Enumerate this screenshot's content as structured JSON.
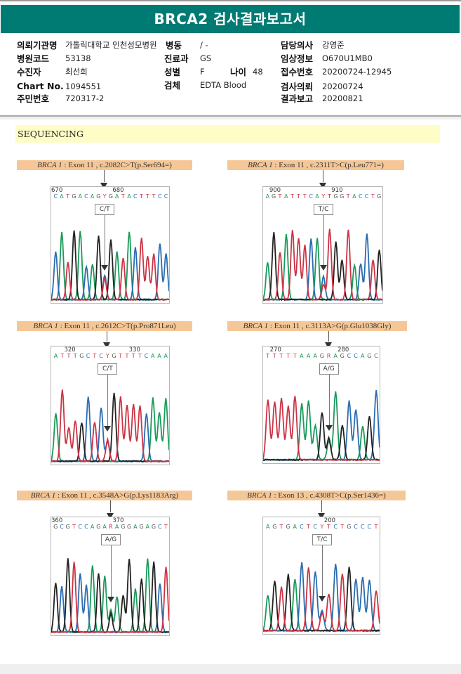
{
  "report": {
    "title": "BRCA2 검사결과보고서"
  },
  "patient_info": {
    "institution": {
      "label": "의뢰기관명",
      "value": "가톨릭대학교 인천성모병원"
    },
    "ward": {
      "label": "병동",
      "value": "/ -"
    },
    "attending": {
      "label": "담당의사",
      "value": "강영준"
    },
    "hospital_code": {
      "label": "병원코드",
      "value": "53138"
    },
    "department": {
      "label": "진료과",
      "value": "GS"
    },
    "clinical_info": {
      "label": "임상정보",
      "value": "O670U1MB0"
    },
    "recipient": {
      "label": "수진자",
      "value": "최선희"
    },
    "sex": {
      "label": "성별",
      "value": "F"
    },
    "age": {
      "label": "나이",
      "value": "48"
    },
    "receipt_no": {
      "label": "접수번호",
      "value": "20200724-12945"
    },
    "chart_no": {
      "label": "Chart No.",
      "value": "1094551"
    },
    "specimen": {
      "label": "검체",
      "value": "EDTA Blood"
    },
    "request_date": {
      "label": "검사의뢰",
      "value": "20200724"
    },
    "resident_no": {
      "label": "주민번호",
      "value": "720317-2"
    },
    "report_date": {
      "label": "결과보고",
      "value": "20200821"
    }
  },
  "section": {
    "title": "SEQUENCING"
  },
  "base_colors": {
    "A": "#1a9a5a",
    "C": "#2b6cb0",
    "G": "#222222",
    "T": "#cc3344"
  },
  "variants": [
    {
      "gene": "BRCA 1",
      "detail": ": Exon 11 , c.2082C>T(p.Ser694=)",
      "call": "C/T",
      "pos_labels": [
        {
          "text": "670",
          "idx": 0
        },
        {
          "text": "680",
          "idx": 10
        }
      ],
      "sequence": "CATGACAGYGATACTTTCC",
      "het_index": 8
    },
    {
      "gene": "BRCA 1",
      "detail": ": Exon 11 , c.2311T>C(p.Leu771=)",
      "call": "T/C",
      "pos_labels": [
        {
          "text": "900",
          "idx": 1
        },
        {
          "text": "910",
          "idx": 11
        }
      ],
      "sequence": "AGTATTTCAYTGGTACCTG",
      "het_index": 9
    },
    {
      "gene": "BRCA 1",
      "detail": ": Exon 11 , c.2612C>T(p.Pro871Leu)",
      "call": "C/T",
      "pos_labels": [
        {
          "text": "320",
          "idx": 2
        },
        {
          "text": "330",
          "idx": 12
        }
      ],
      "sequence": "ATTTGCTCYGTTTTCAAA",
      "het_index": 8
    },
    {
      "gene": "BRCA 1",
      "detail": ": Exon 11 , c.3113A>G(p.Glu1038Gly)",
      "call": "A/G",
      "pos_labels": [
        {
          "text": "270",
          "idx": 1
        },
        {
          "text": "280",
          "idx": 11
        }
      ],
      "sequence": "TTTTTAAAGRAGCCAGC",
      "het_index": 9
    },
    {
      "gene": "BRCA 1",
      "detail": ": Exon 11 , c.3548A>G(p.Lys1183Arg)",
      "call": "A/G",
      "pos_labels": [
        {
          "text": "360",
          "idx": 0
        },
        {
          "text": "370",
          "idx": 10
        }
      ],
      "sequence": "GCGTCCAGARAGGAGAGCT",
      "het_index": 9
    },
    {
      "gene": "BRCA 1",
      "detail": ": Exon 13 , c.4308T>C(p.Ser1436=)",
      "call": "T/C",
      "pos_labels": [
        {
          "text": "200",
          "idx": 9
        }
      ],
      "sequence": "AGTGACTCYTCTGCCCT",
      "het_index": 8
    }
  ]
}
